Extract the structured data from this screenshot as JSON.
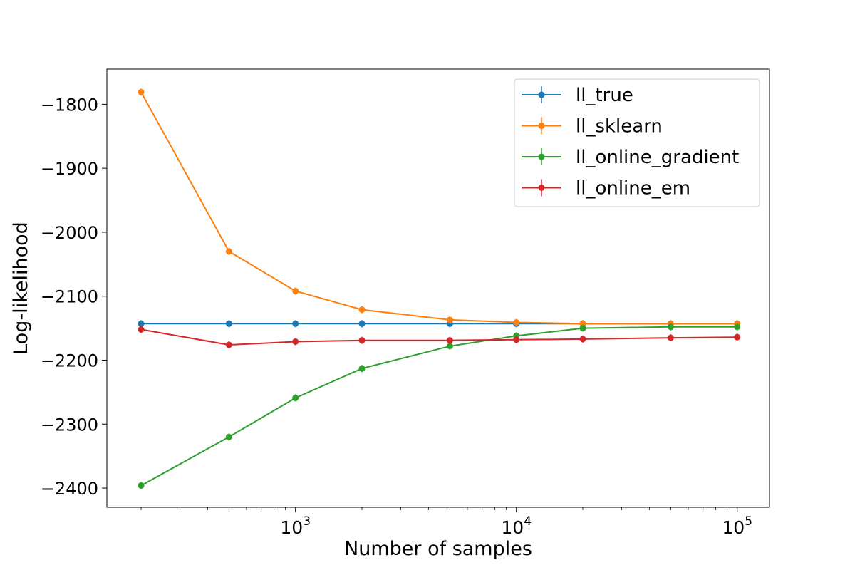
{
  "chart_data": {
    "type": "line",
    "title": "",
    "xlabel": "Number of samples",
    "ylabel": "Log-likelihood",
    "xscale": "log",
    "xlim": [
      140,
      140000
    ],
    "ylim": [
      -2430,
      -1745
    ],
    "x_ticks": [
      {
        "value": 1000,
        "base": "10",
        "exp": "3"
      },
      {
        "value": 10000,
        "base": "10",
        "exp": "4"
      },
      {
        "value": 100000,
        "base": "10",
        "exp": "5"
      }
    ],
    "y_ticks": [
      {
        "value": -1800,
        "label": "−1800"
      },
      {
        "value": -1900,
        "label": "−1900"
      },
      {
        "value": -2000,
        "label": "−2000"
      },
      {
        "value": -2100,
        "label": "−2100"
      },
      {
        "value": -2200,
        "label": "−2200"
      },
      {
        "value": -2300,
        "label": "−2300"
      },
      {
        "value": -2400,
        "label": "−2400"
      }
    ],
    "x": [
      200,
      500,
      1000,
      2000,
      5000,
      10000,
      20000,
      50000,
      100000
    ],
    "series": [
      {
        "name": "ll_true",
        "color": "#1f77b4",
        "values": [
          -2143,
          -2143,
          -2143,
          -2143,
          -2143,
          -2143,
          -2143,
          -2143,
          -2143
        ]
      },
      {
        "name": "ll_sklearn",
        "color": "#ff7f0e",
        "values": [
          -1781,
          -2030,
          -2092,
          -2121,
          -2137,
          -2141,
          -2143,
          -2143,
          -2143
        ]
      },
      {
        "name": "ll_online_gradient",
        "color": "#2ca02c",
        "values": [
          -2396,
          -2320,
          -2259,
          -2213,
          -2178,
          -2162,
          -2150,
          -2148,
          -2148
        ]
      },
      {
        "name": "ll_online_em",
        "color": "#d62728",
        "values": [
          -2152,
          -2176,
          -2171,
          -2169,
          -2169,
          -2168,
          -2167,
          -2165,
          -2164
        ]
      }
    ],
    "grid": false,
    "legend_position": "top-right"
  }
}
